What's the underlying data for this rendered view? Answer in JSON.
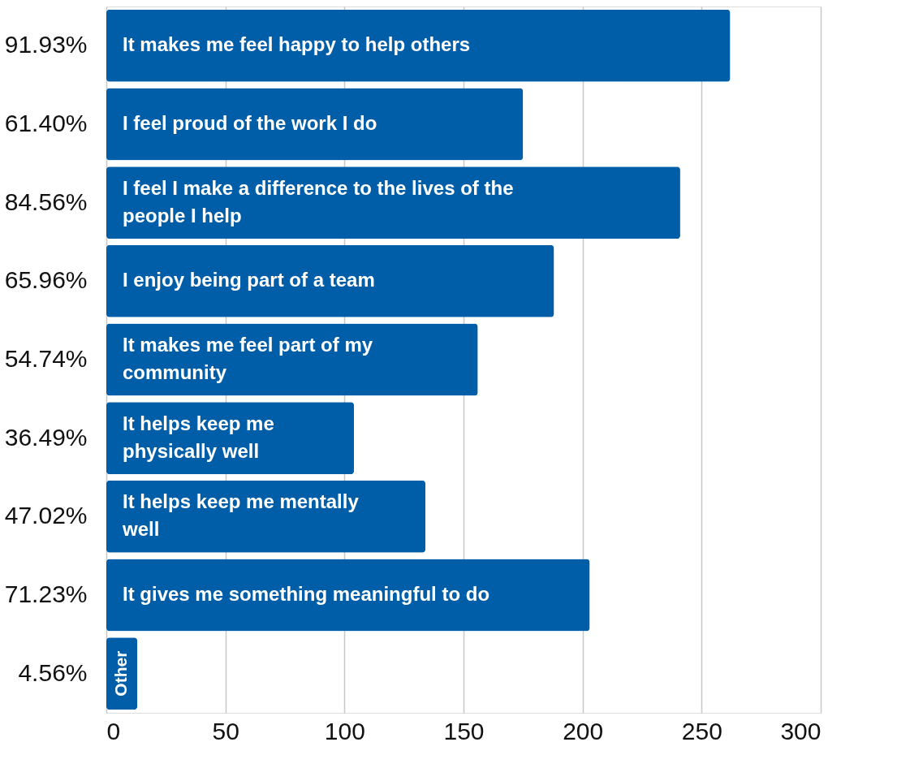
{
  "chart_data": {
    "type": "bar",
    "orientation": "horizontal",
    "categories": [
      "91.93%",
      "61.40%",
      "84.56%",
      "65.96%",
      "54.74%",
      "36.49%",
      "47.02%",
      "71.23%",
      "4.56%"
    ],
    "values": [
      262,
      175,
      241,
      188,
      156,
      104,
      134,
      203,
      13
    ],
    "color": "#005ea8",
    "xlim": [
      0,
      300
    ],
    "xticks": [
      0,
      50,
      100,
      150,
      200,
      250,
      300
    ],
    "grid": "x",
    "annotations": [
      "It makes me feel happy to help others",
      "I feel proud of the work I do",
      "I feel I make a difference to the lives of the\npeople I help",
      "I enjoy being part of a team",
      "It makes me feel part of my\ncommunity",
      "It helps keep me\nphysically well",
      "It helps keep me mentally\nwell",
      "It gives me something meaningful to do",
      "Other"
    ]
  }
}
